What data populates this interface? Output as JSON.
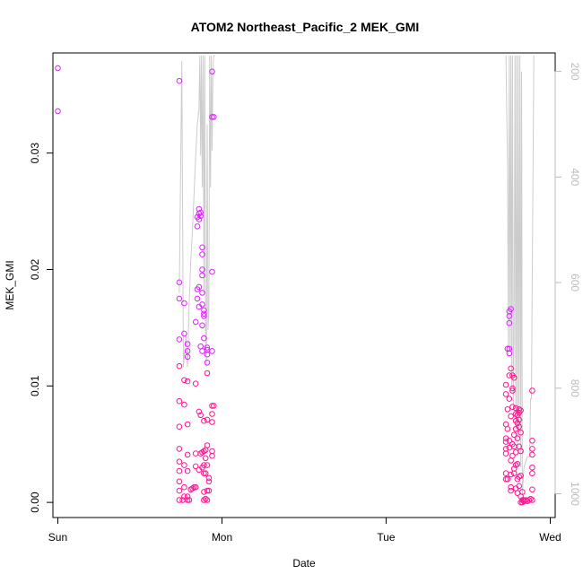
{
  "chart_data": {
    "type": "scatter",
    "title": "ATOM2 Northeast_Pacific_2 MEK_GMI",
    "xlabel": "Date",
    "ylabel": "MEK_GMI",
    "xlim": [
      -0.03,
      3.03
    ],
    "ylim": [
      -0.0013,
      0.0386
    ],
    "x_ticks": [
      {
        "value": 0,
        "label": "Sun"
      },
      {
        "value": 1,
        "label": "Mon"
      },
      {
        "value": 2,
        "label": "Tue"
      },
      {
        "value": 3,
        "label": "Wed"
      }
    ],
    "y_ticks": [
      {
        "value": 0.0,
        "label": "0.00"
      },
      {
        "value": 0.01,
        "label": "0.01"
      },
      {
        "value": 0.02,
        "label": "0.02"
      },
      {
        "value": 0.03,
        "label": "0.03"
      }
    ],
    "y2lim": [
      1045,
      165
    ],
    "y2_ticks": [
      {
        "value": 200,
        "label": "200"
      },
      {
        "value": 400,
        "label": "400"
      },
      {
        "value": 600,
        "label": "600"
      },
      {
        "value": 800,
        "label": "800"
      },
      {
        "value": 1000,
        "label": "1000"
      }
    ],
    "colors": {
      "point_high": "#e020ff",
      "point_low": "#ff1493",
      "pressure_line": "#cccccc",
      "axis": "#000000",
      "right_axis": "#bbbbbb"
    },
    "series": [
      {
        "kind": "points",
        "points": [
          [
            0.0,
            0.0373
          ],
          [
            0.0,
            0.0336
          ],
          [
            0.74,
            0.0362
          ],
          [
            0.74,
            0.0189
          ],
          [
            0.74,
            0.0175
          ],
          [
            0.74,
            0.014
          ],
          [
            0.74,
            0.0117
          ],
          [
            0.74,
            0.0087
          ],
          [
            0.74,
            0.0065
          ],
          [
            0.74,
            0.0046
          ],
          [
            0.74,
            0.0035
          ],
          [
            0.74,
            0.0027
          ],
          [
            0.74,
            0.0018
          ],
          [
            0.74,
            0.001
          ],
          [
            0.74,
            0.0002
          ],
          [
            0.76,
            0.0002
          ],
          [
            0.77,
            0.0171
          ],
          [
            0.77,
            0.0145
          ],
          [
            0.77,
            0.0105
          ],
          [
            0.77,
            0.0084
          ],
          [
            0.77,
            0.0032
          ],
          [
            0.77,
            0.0013
          ],
          [
            0.77,
            0.0005
          ],
          [
            0.79,
            0.0136
          ],
          [
            0.79,
            0.013
          ],
          [
            0.79,
            0.0125
          ],
          [
            0.79,
            0.0104
          ],
          [
            0.79,
            0.0067
          ],
          [
            0.79,
            0.0041
          ],
          [
            0.79,
            0.0027
          ],
          [
            0.79,
            0.0005
          ],
          [
            0.79,
            0.0002
          ],
          [
            0.8,
            0.0002
          ],
          [
            0.81,
            0.0011
          ],
          [
            0.82,
            0.0012
          ],
          [
            0.83,
            0.0013
          ],
          [
            0.84,
            0.0155
          ],
          [
            0.84,
            0.0102
          ],
          [
            0.84,
            0.0042
          ],
          [
            0.84,
            0.0031
          ],
          [
            0.84,
            0.0013
          ],
          [
            0.85,
            0.0245
          ],
          [
            0.85,
            0.0237
          ],
          [
            0.85,
            0.0183
          ],
          [
            0.85,
            0.0175
          ],
          [
            0.86,
            0.0252
          ],
          [
            0.86,
            0.0248
          ],
          [
            0.86,
            0.0243
          ],
          [
            0.86,
            0.0185
          ],
          [
            0.86,
            0.0168
          ],
          [
            0.86,
            0.0078
          ],
          [
            0.86,
            0.0028
          ],
          [
            0.87,
            0.0249
          ],
          [
            0.87,
            0.0246
          ],
          [
            0.87,
            0.0134
          ],
          [
            0.87,
            0.0075
          ],
          [
            0.87,
            0.0042
          ],
          [
            0.88,
            0.0219
          ],
          [
            0.88,
            0.0213
          ],
          [
            0.88,
            0.02
          ],
          [
            0.88,
            0.0195
          ],
          [
            0.88,
            0.018
          ],
          [
            0.88,
            0.017
          ],
          [
            0.88,
            0.0152
          ],
          [
            0.88,
            0.013
          ],
          [
            0.88,
            0.0043
          ],
          [
            0.88,
            0.003
          ],
          [
            0.89,
            0.0165
          ],
          [
            0.89,
            0.0162
          ],
          [
            0.89,
            0.016
          ],
          [
            0.89,
            0.0141
          ],
          [
            0.89,
            0.007
          ],
          [
            0.89,
            0.0044
          ],
          [
            0.89,
            0.0032
          ],
          [
            0.89,
            0.0025
          ],
          [
            0.89,
            0.0009
          ],
          [
            0.89,
            0.0002
          ],
          [
            0.9,
            0.0045
          ],
          [
            0.9,
            0.0038
          ],
          [
            0.9,
            0.0025
          ],
          [
            0.9,
            0.0003
          ],
          [
            0.91,
            0.0133
          ],
          [
            0.91,
            0.0131
          ],
          [
            0.91,
            0.0127
          ],
          [
            0.91,
            0.012
          ],
          [
            0.91,
            0.0111
          ],
          [
            0.91,
            0.0071
          ],
          [
            0.91,
            0.0049
          ],
          [
            0.91,
            0.0032
          ],
          [
            0.91,
            0.001
          ],
          [
            0.91,
            0.0002
          ],
          [
            0.92,
            0.0021
          ],
          [
            0.92,
            0.0018
          ],
          [
            0.92,
            0.001
          ],
          [
            0.94,
            0.0198
          ],
          [
            0.94,
            0.037
          ],
          [
            0.94,
            0.0331
          ],
          [
            0.94,
            0.013
          ],
          [
            0.94,
            0.0083
          ],
          [
            0.94,
            0.0076
          ],
          [
            0.94,
            0.0069
          ],
          [
            0.94,
            0.0044
          ],
          [
            0.94,
            0.004
          ],
          [
            0.95,
            0.0331
          ],
          [
            0.95,
            0.0083
          ],
          [
            2.73,
            0.0101
          ],
          [
            2.73,
            0.0093
          ],
          [
            2.73,
            0.0067
          ],
          [
            2.73,
            0.0055
          ],
          [
            2.73,
            0.0052
          ],
          [
            2.73,
            0.0046
          ],
          [
            2.73,
            0.0042
          ],
          [
            2.73,
            0.0025
          ],
          [
            2.73,
            0.002
          ],
          [
            2.74,
            0.0132
          ],
          [
            2.74,
            0.008
          ],
          [
            2.74,
            0.0063
          ],
          [
            2.74,
            0.002
          ],
          [
            2.75,
            0.0164
          ],
          [
            2.75,
            0.016
          ],
          [
            2.75,
            0.0154
          ],
          [
            2.75,
            0.0132
          ],
          [
            2.75,
            0.0128
          ],
          [
            2.75,
            0.0109
          ],
          [
            2.75,
            0.0089
          ],
          [
            2.75,
            0.0053
          ],
          [
            2.75,
            0.0047
          ],
          [
            2.76,
            0.0166
          ],
          [
            2.76,
            0.0115
          ],
          [
            2.76,
            0.0074
          ],
          [
            2.76,
            0.0036
          ],
          [
            2.76,
            0.0024
          ],
          [
            2.76,
            0.0013
          ],
          [
            2.76,
            0.001
          ],
          [
            2.77,
            0.0109
          ],
          [
            2.77,
            0.0098
          ],
          [
            2.77,
            0.0096
          ],
          [
            2.77,
            0.0082
          ],
          [
            2.77,
            0.005
          ],
          [
            2.77,
            0.004
          ],
          [
            2.78,
            0.0107
          ],
          [
            2.78,
            0.0058
          ],
          [
            2.78,
            0.0048
          ],
          [
            2.78,
            0.0029
          ],
          [
            2.78,
            0.0025
          ],
          [
            2.79,
            0.0081
          ],
          [
            2.79,
            0.0076
          ],
          [
            2.79,
            0.007
          ],
          [
            2.79,
            0.0063
          ],
          [
            2.79,
            0.0043
          ],
          [
            2.79,
            0.0032
          ],
          [
            2.79,
            0.0012
          ],
          [
            2.8,
            0.0075
          ],
          [
            2.8,
            0.0068
          ],
          [
            2.8,
            0.0055
          ],
          [
            2.8,
            0.0033
          ],
          [
            2.8,
            0.002
          ],
          [
            2.8,
            0.0008
          ],
          [
            2.81,
            0.008
          ],
          [
            2.81,
            0.0077
          ],
          [
            2.81,
            0.0071
          ],
          [
            2.81,
            0.0065
          ],
          [
            2.81,
            0.0048
          ],
          [
            2.81,
            0.0022
          ],
          [
            2.81,
            0.0014
          ],
          [
            2.82,
            0.0079
          ],
          [
            2.82,
            0.006
          ],
          [
            2.82,
            0.0044
          ],
          [
            2.82,
            0.0023
          ],
          [
            2.82,
            0.0005
          ],
          [
            2.82,
            0.0
          ],
          [
            2.83,
            0.0009
          ],
          [
            2.83,
            0.0002
          ],
          [
            2.83,
            0.0
          ],
          [
            2.84,
            0.0002
          ],
          [
            2.84,
            0.0001
          ],
          [
            2.85,
            0.0002
          ],
          [
            2.86,
            0.0001
          ],
          [
            2.87,
            0.0002
          ],
          [
            2.88,
            0.0003
          ],
          [
            2.89,
            0.0096
          ],
          [
            2.89,
            0.0053
          ],
          [
            2.89,
            0.0046
          ],
          [
            2.89,
            0.0041
          ],
          [
            2.89,
            0.003
          ],
          [
            2.89,
            0.0025
          ],
          [
            2.89,
            0.0011
          ],
          [
            2.89,
            0.0002
          ]
        ]
      },
      {
        "kind": "line",
        "axis": "right",
        "x": [
          0.74,
          0.755,
          0.765,
          0.78,
          0.79,
          0.8,
          0.81,
          0.82,
          0.83,
          0.84,
          0.85,
          0.86,
          0.865,
          0.87,
          0.875,
          0.88,
          0.885,
          0.89,
          0.895,
          0.9,
          0.905,
          0.91,
          0.915,
          0.92,
          0.925,
          0.93,
          0.935,
          0.94,
          0.945,
          0.95,
          0.96,
          2.73,
          2.74,
          2.745,
          2.75,
          2.755,
          2.76,
          2.765,
          2.77,
          2.775,
          2.78,
          2.785,
          2.79,
          2.795,
          2.8,
          2.805,
          2.81,
          2.815,
          2.82,
          2.825,
          2.83,
          2.84,
          2.86,
          2.875,
          2.88,
          2.885,
          2.89,
          2.9
        ],
        "y": [
          620,
          180,
          760,
          700,
          760,
          640,
          560,
          500,
          430,
          360,
          300,
          270,
          170,
          360,
          170,
          420,
          170,
          620,
          170,
          700,
          760,
          300,
          690,
          650,
          170,
          420,
          170,
          350,
          200,
          170,
          170,
          170,
          380,
          740,
          170,
          720,
          170,
          800,
          170,
          840,
          700,
          170,
          900,
          170,
          920,
          170,
          880,
          170,
          950,
          200,
          1000,
          950,
          930,
          930,
          820,
          820,
          600,
          170
        ]
      }
    ]
  }
}
